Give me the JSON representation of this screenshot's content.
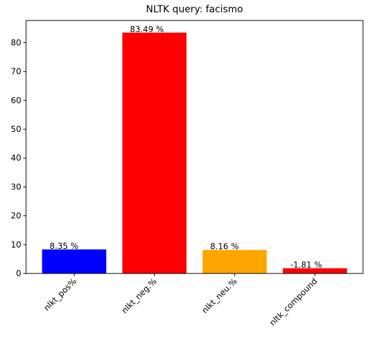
{
  "chart_data": {
    "type": "bar",
    "title": "NLTK query: facismo",
    "xlabel": "",
    "ylabel": "",
    "categories": [
      "nlkt_pos%",
      "nlkt_neg.%",
      "nlkt_neu.%",
      "nltk_compound"
    ],
    "values": [
      8.35,
      83.49,
      8.16,
      1.81
    ],
    "data_labels": [
      "8.35 %",
      "83.49 %",
      "8.16 %",
      "-1.81 %"
    ],
    "colors": [
      "#0000ff",
      "#ff0000",
      "#ffa500",
      "#ff0000"
    ],
    "ylim": [
      0,
      87.7
    ],
    "yticks": [
      0,
      10,
      20,
      30,
      40,
      50,
      60,
      70,
      80
    ],
    "grid": false,
    "legend": "none"
  }
}
